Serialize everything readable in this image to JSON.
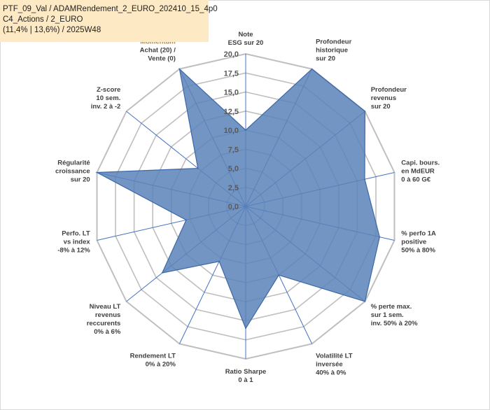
{
  "title_box": {
    "line1": "PTF_09_Val / ADAMRendement_2_EURO_202410_15_4p0",
    "line2": "C4_Actions / 2_EURO",
    "line3": "(11,4% | 13,6%) / 2025W48"
  },
  "chart_data": {
    "type": "radar",
    "rlim": [
      0,
      20
    ],
    "ticks": [
      "0,0",
      "2,5",
      "5,0",
      "7,5",
      "10,0",
      "12,5",
      "15,0",
      "17,5",
      "20,0"
    ],
    "grid": true,
    "axes": [
      {
        "label": [
          "Note",
          "ESG sur 20"
        ]
      },
      {
        "label": [
          "Profondeur",
          "historique",
          "sur 20"
        ]
      },
      {
        "label": [
          "Profondeur",
          "revenus",
          "sur 20"
        ]
      },
      {
        "label": [
          "Capi. bours.",
          "en MdEUR",
          "0 à 60 G€"
        ]
      },
      {
        "label": [
          "% perfo 1A",
          "positive",
          "50% à 80%"
        ]
      },
      {
        "label": [
          "% perte max.",
          "sur 1 sem.",
          "inv. 50% à 20%"
        ]
      },
      {
        "label": [
          "Volatilité LT",
          "inversée",
          "40% à 0%"
        ]
      },
      {
        "label": [
          "Ratio Sharpe",
          "0 à 1"
        ]
      },
      {
        "label": [
          "Rendement LT",
          "0% à 20%"
        ]
      },
      {
        "label": [
          "Niveau LT",
          "revenus",
          "reccurents",
          "0% à 6%"
        ]
      },
      {
        "label": [
          "Perfo. LT",
          "vs index",
          "-8% à 12%"
        ]
      },
      {
        "label": [
          "Régularité",
          "croissance",
          "sur 20"
        ]
      },
      {
        "label": [
          "Z-score",
          "10 sem.",
          "inv. 2 à -2"
        ]
      },
      {
        "label": [
          "Momentum",
          "Achat (20) /",
          "Vente (0)"
        ]
      }
    ],
    "series": [
      {
        "values": [
          10,
          20,
          20,
          16,
          18,
          20,
          10,
          16,
          8,
          14,
          8,
          20,
          8,
          20
        ]
      }
    ],
    "colors": {
      "fill": "#5b83b8",
      "stroke": "#3c67a8",
      "grid": "#bfbfbf",
      "axis": "#4472c4",
      "highlight_label": "#b08a3a"
    }
  }
}
